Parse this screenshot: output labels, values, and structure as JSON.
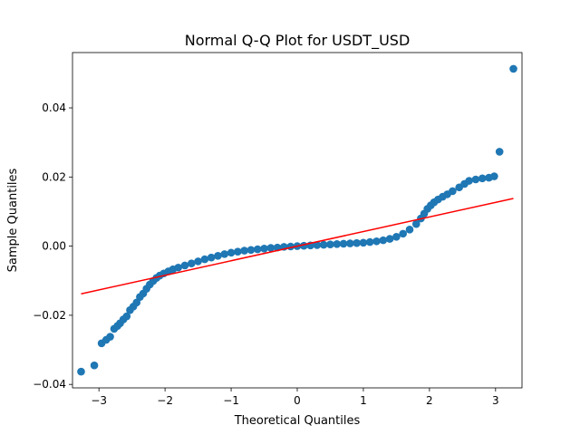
{
  "chart_data": {
    "type": "scatter",
    "title": "Normal Q-Q Plot for USDT_USD",
    "xlabel": "Theoretical Quantiles",
    "ylabel": "Sample Quantiles",
    "xlim": [
      -3.4,
      3.4
    ],
    "ylim": [
      -0.041,
      0.056
    ],
    "x_ticks": [
      -3,
      -2,
      -1,
      0,
      1,
      2,
      3
    ],
    "x_tick_labels": [
      "−3",
      "−2",
      "−1",
      "0",
      "1",
      "2",
      "3"
    ],
    "y_ticks": [
      -0.04,
      -0.02,
      0.0,
      0.02,
      0.04
    ],
    "y_tick_labels": [
      "−0.04",
      "−0.02",
      "0.00",
      "0.02",
      "0.04"
    ],
    "grid": false,
    "colors": {
      "points": "#1f77b4",
      "line": "#ff0000"
    },
    "reference_line": {
      "x": [
        -3.27,
        3.27
      ],
      "y": [
        -0.0138,
        0.0138
      ]
    },
    "series": [
      {
        "points": [
          [
            -3.27,
            -0.0363
          ],
          [
            -3.07,
            -0.0345
          ],
          [
            -2.96,
            -0.0281
          ],
          [
            -2.89,
            -0.0271
          ],
          [
            -2.83,
            -0.0262
          ],
          [
            -2.77,
            -0.0239
          ],
          [
            -2.72,
            -0.0231
          ],
          [
            -2.68,
            -0.0223
          ],
          [
            -2.63,
            -0.0212
          ],
          [
            -2.58,
            -0.0203
          ],
          [
            -2.53,
            -0.0185
          ],
          [
            -2.48,
            -0.0175
          ],
          [
            -2.43,
            -0.0163
          ],
          [
            -2.38,
            -0.0147
          ],
          [
            -2.33,
            -0.0137
          ],
          [
            -2.28,
            -0.0123
          ],
          [
            -2.23,
            -0.0111
          ],
          [
            -2.18,
            -0.0101
          ],
          [
            -2.13,
            -0.0092
          ],
          [
            -2.08,
            -0.0085
          ],
          [
            -2.02,
            -0.0079
          ],
          [
            -1.95,
            -0.0073
          ],
          [
            -1.88,
            -0.0067
          ],
          [
            -1.8,
            -0.0062
          ],
          [
            -1.7,
            -0.0056
          ],
          [
            -1.6,
            -0.005
          ],
          [
            -1.5,
            -0.0044
          ],
          [
            -1.4,
            -0.0038
          ],
          [
            -1.3,
            -0.0033
          ],
          [
            -1.2,
            -0.0028
          ],
          [
            -1.1,
            -0.0023
          ],
          [
            -1.0,
            -0.0019
          ],
          [
            -0.9,
            -0.0016
          ],
          [
            -0.8,
            -0.0013
          ],
          [
            -0.7,
            -0.0011
          ],
          [
            -0.6,
            -0.0009
          ],
          [
            -0.5,
            -0.0007
          ],
          [
            -0.4,
            -0.0005
          ],
          [
            -0.3,
            -0.0004
          ],
          [
            -0.2,
            -0.0002
          ],
          [
            -0.1,
            -0.0001
          ],
          [
            0.0,
            0.0
          ],
          [
            0.1,
            0.0001
          ],
          [
            0.2,
            0.0002
          ],
          [
            0.3,
            0.0003
          ],
          [
            0.4,
            0.0004
          ],
          [
            0.5,
            0.0005
          ],
          [
            0.6,
            0.0006
          ],
          [
            0.7,
            0.0007
          ],
          [
            0.8,
            0.0008
          ],
          [
            0.9,
            0.0009
          ],
          [
            1.0,
            0.001
          ],
          [
            1.1,
            0.0012
          ],
          [
            1.2,
            0.0014
          ],
          [
            1.3,
            0.0017
          ],
          [
            1.4,
            0.0021
          ],
          [
            1.5,
            0.0027
          ],
          [
            1.6,
            0.0036
          ],
          [
            1.7,
            0.0048
          ],
          [
            1.8,
            0.0064
          ],
          [
            1.87,
            0.008
          ],
          [
            1.92,
            0.0094
          ],
          [
            1.97,
            0.0108
          ],
          [
            2.02,
            0.0118
          ],
          [
            2.07,
            0.0127
          ],
          [
            2.13,
            0.0135
          ],
          [
            2.2,
            0.0143
          ],
          [
            2.27,
            0.015
          ],
          [
            2.35,
            0.0159
          ],
          [
            2.45,
            0.017
          ],
          [
            2.53,
            0.018
          ],
          [
            2.6,
            0.0189
          ],
          [
            2.7,
            0.0193
          ],
          [
            2.8,
            0.0196
          ],
          [
            2.9,
            0.0198
          ],
          [
            2.98,
            0.0202
          ],
          [
            3.06,
            0.0273
          ],
          [
            3.27,
            0.0513
          ]
        ]
      }
    ]
  }
}
